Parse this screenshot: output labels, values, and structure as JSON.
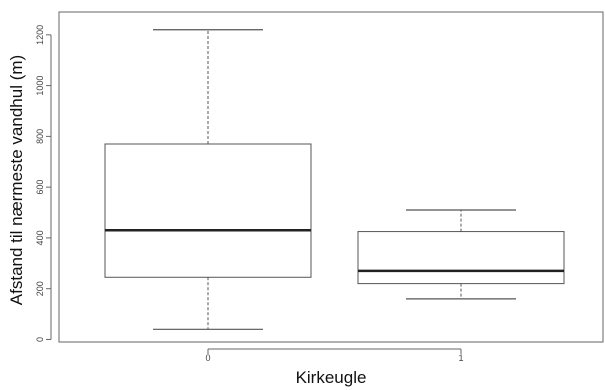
{
  "chart_data": {
    "type": "boxplot",
    "title": "",
    "xlabel": "Kirkeugle",
    "ylabel": "Afstand til nærmeste vandhul (m)",
    "categories": [
      "0",
      "1"
    ],
    "boxes": [
      {
        "category": "0",
        "whisker_low": 40,
        "q1": 245,
        "median": 430,
        "q3": 770,
        "whisker_high": 1220
      },
      {
        "category": "1",
        "whisker_low": 160,
        "q1": 220,
        "median": 270,
        "q3": 425,
        "whisker_high": 510
      }
    ],
    "ylim": [
      -10,
      1290
    ],
    "yticks": [
      0,
      200,
      400,
      600,
      800,
      1000,
      1200
    ],
    "ytick_labels": [
      "0",
      "200",
      "400",
      "600",
      "800",
      "1000",
      "1200"
    ],
    "grid": false,
    "colors": {
      "box_fill": "#ffffff",
      "box_line": "#555555",
      "median": "#222222",
      "axis": "#666666"
    }
  }
}
